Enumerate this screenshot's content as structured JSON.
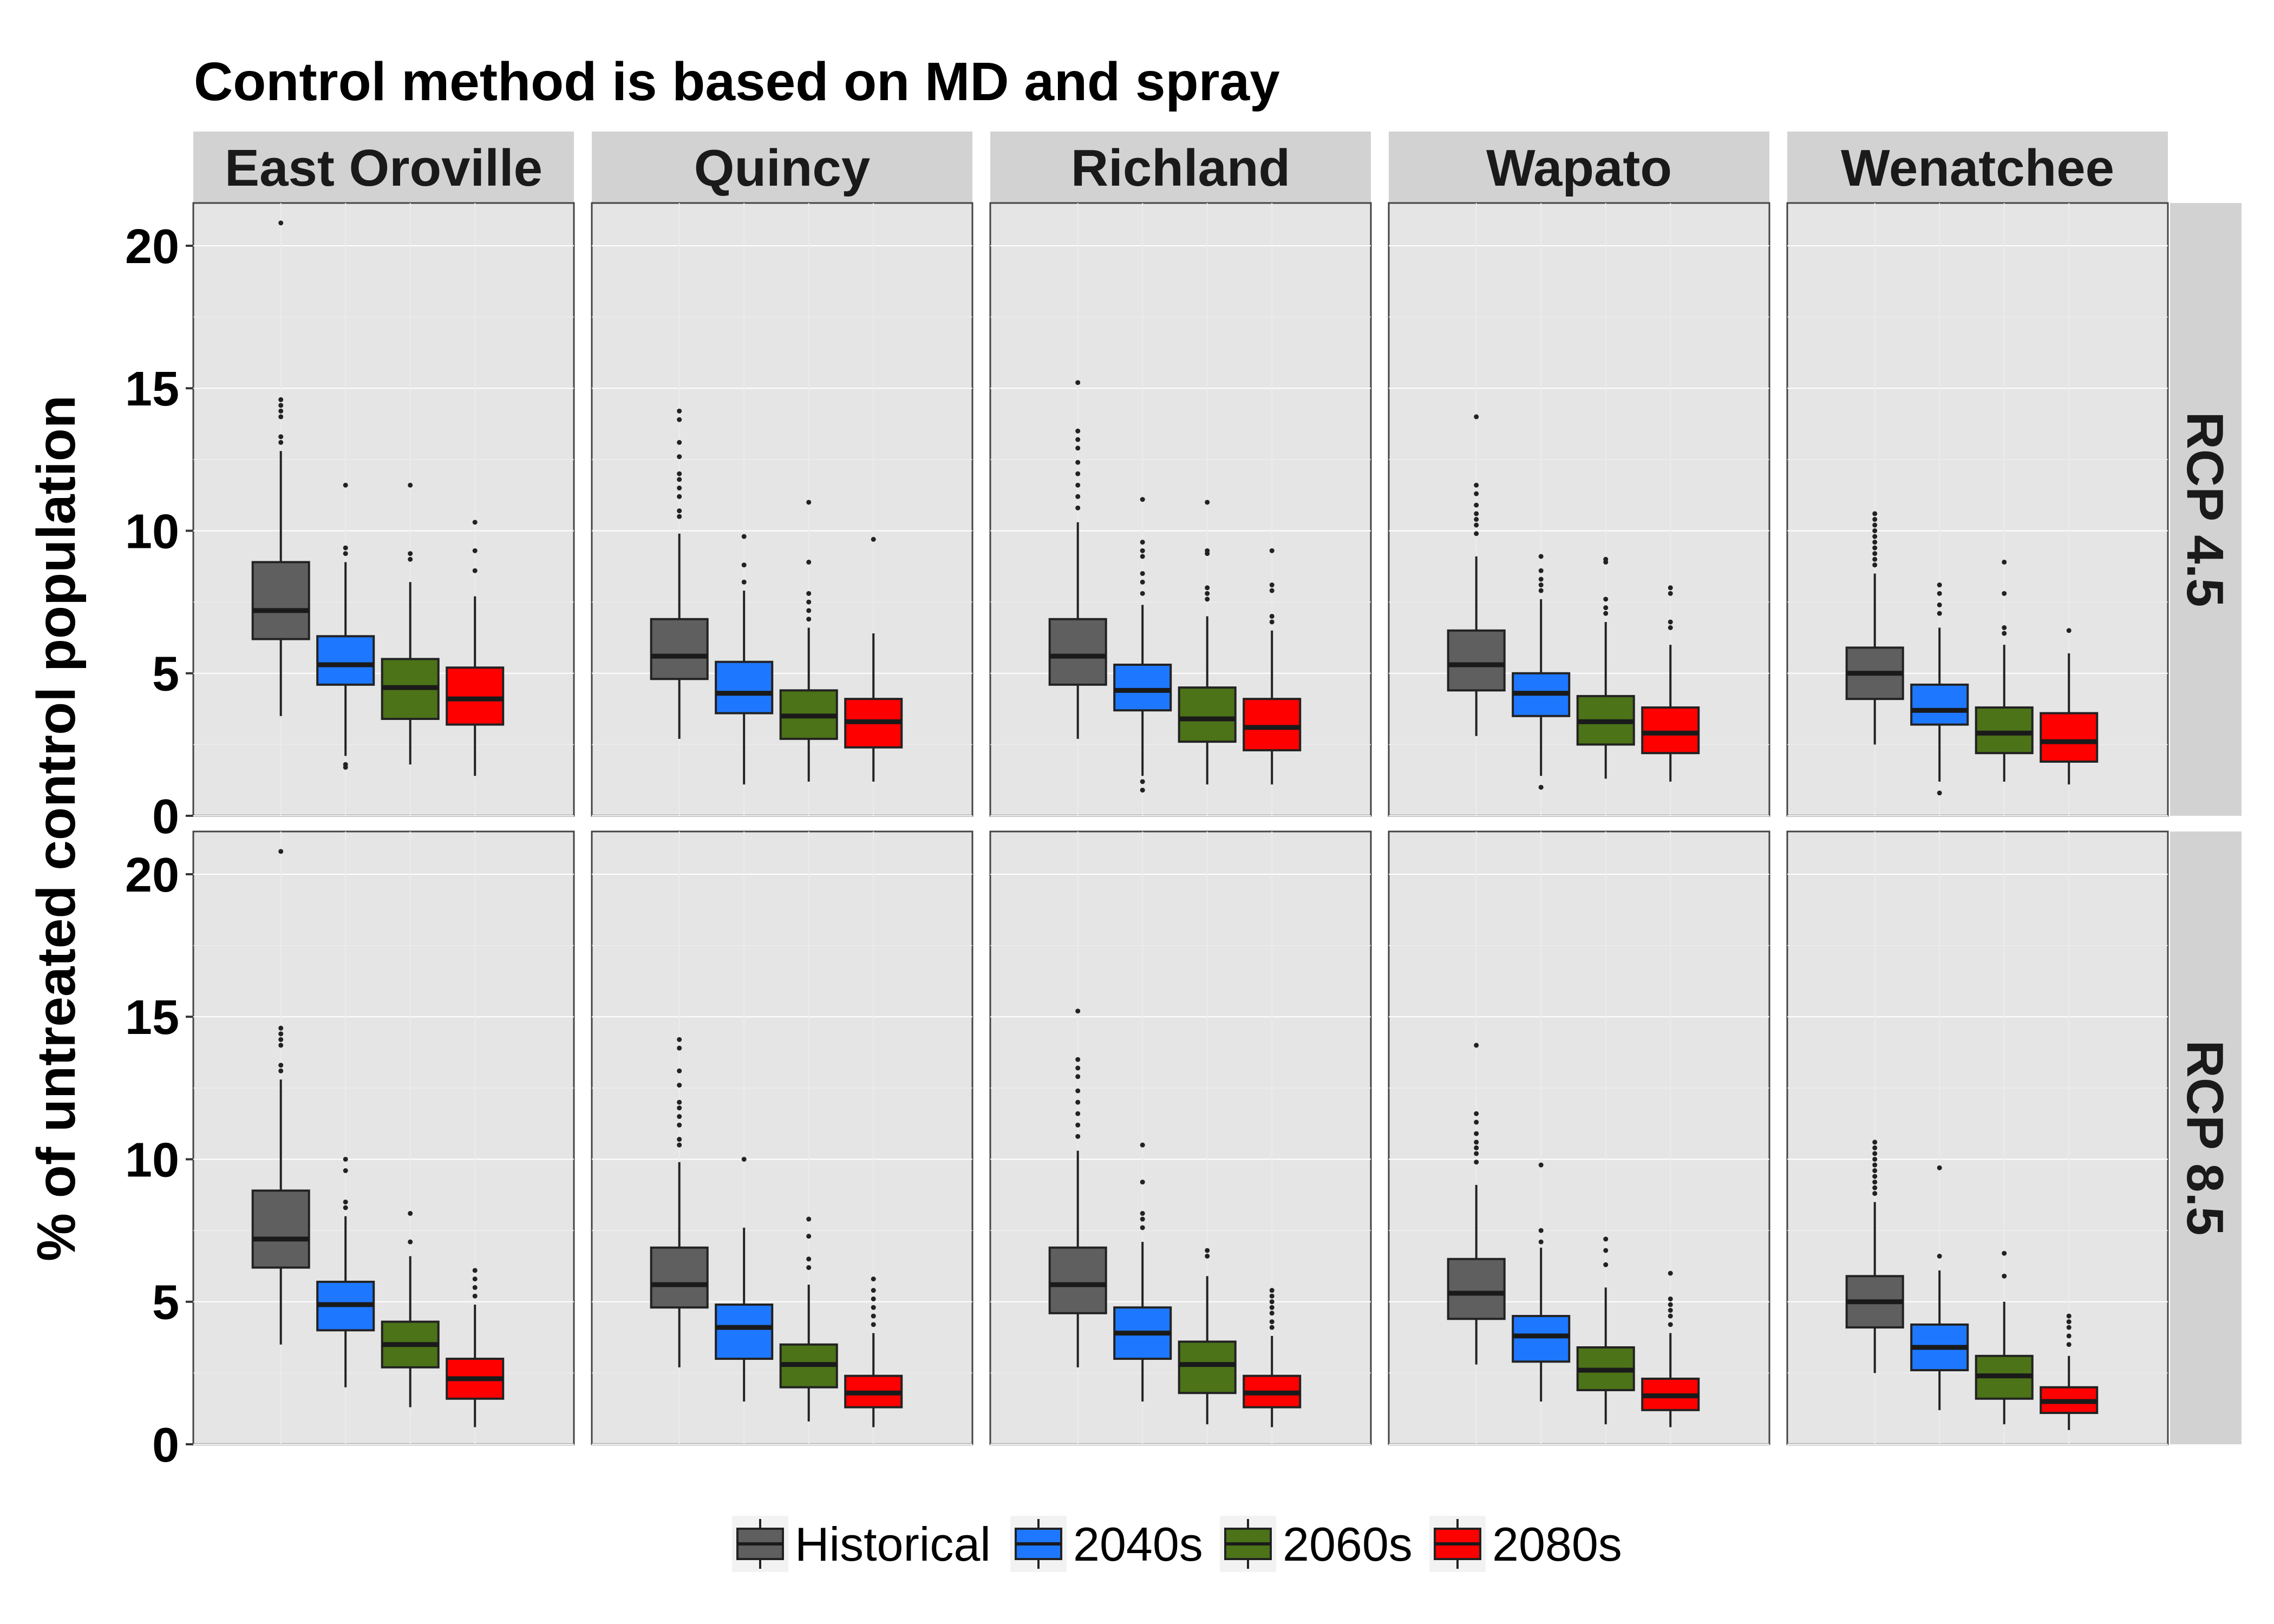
{
  "chart_data": {
    "type": "boxplot",
    "title": "Control method is based on MD and spray",
    "ylabel": "% of untreated control population",
    "xlabel": "",
    "ylim": [
      0,
      21.5
    ],
    "yticks": [
      0,
      5,
      10,
      15,
      20
    ],
    "grid": true,
    "legend_position": "bottom",
    "facet_columns": [
      "East Oroville",
      "Quincy",
      "Richland",
      "Wapato",
      "Wenatchee"
    ],
    "facet_rows": [
      "RCP 4.5",
      "RCP 8.5"
    ],
    "series": [
      {
        "name": "Historical",
        "color": "#5f5f5f"
      },
      {
        "name": "2040s",
        "color": "#1e78ff"
      },
      {
        "name": "2060s",
        "color": "#4c7318"
      },
      {
        "name": "2080s",
        "color": "#ff0000"
      }
    ],
    "panels": [
      {
        "row": "RCP 4.5",
        "column": "East Oroville",
        "boxes": [
          {
            "min": 3.5,
            "q1": 6.2,
            "median": 7.2,
            "q3": 8.9,
            "max": 12.8,
            "outliers": [
              13.1,
              13.3,
              14.0,
              14.2,
              14.4,
              14.6,
              20.8
            ]
          },
          {
            "min": 2.1,
            "q1": 4.6,
            "median": 5.3,
            "q3": 6.3,
            "max": 8.9,
            "outliers": [
              1.7,
              1.8,
              9.2,
              9.4,
              11.6
            ]
          },
          {
            "min": 1.8,
            "q1": 3.4,
            "median": 4.5,
            "q3": 5.5,
            "max": 8.2,
            "outliers": [
              9.0,
              9.2,
              11.6
            ]
          },
          {
            "min": 1.4,
            "q1": 3.2,
            "median": 4.1,
            "q3": 5.2,
            "max": 7.7,
            "outliers": [
              8.6,
              9.3,
              10.3
            ]
          }
        ]
      },
      {
        "row": "RCP 4.5",
        "column": "Quincy",
        "boxes": [
          {
            "min": 2.7,
            "q1": 4.8,
            "median": 5.6,
            "q3": 6.9,
            "max": 9.9,
            "outliers": [
              10.5,
              10.7,
              11.2,
              11.5,
              11.8,
              12.0,
              12.6,
              13.1,
              13.9,
              14.2
            ]
          },
          {
            "min": 1.1,
            "q1": 3.6,
            "median": 4.3,
            "q3": 5.4,
            "max": 7.9,
            "outliers": [
              8.2,
              8.8,
              9.8
            ]
          },
          {
            "min": 1.2,
            "q1": 2.7,
            "median": 3.5,
            "q3": 4.4,
            "max": 6.6,
            "outliers": [
              6.9,
              7.2,
              7.5,
              7.8,
              8.9,
              11.0
            ]
          },
          {
            "min": 1.2,
            "q1": 2.4,
            "median": 3.3,
            "q3": 4.1,
            "max": 6.4,
            "outliers": [
              9.7
            ]
          }
        ]
      },
      {
        "row": "RCP 4.5",
        "column": "Richland",
        "boxes": [
          {
            "min": 2.7,
            "q1": 4.6,
            "median": 5.6,
            "q3": 6.9,
            "max": 10.3,
            "outliers": [
              10.8,
              11.2,
              11.6,
              12.0,
              12.4,
              12.9,
              13.2,
              13.5,
              15.2
            ]
          },
          {
            "min": 1.4,
            "q1": 3.7,
            "median": 4.4,
            "q3": 5.3,
            "max": 7.4,
            "outliers": [
              0.9,
              1.2,
              7.8,
              8.2,
              8.5,
              9.1,
              9.3,
              9.6,
              11.1
            ]
          },
          {
            "min": 1.1,
            "q1": 2.6,
            "median": 3.4,
            "q3": 4.5,
            "max": 7.0,
            "outliers": [
              7.6,
              7.8,
              8.0,
              9.2,
              9.3,
              11.0
            ]
          },
          {
            "min": 1.1,
            "q1": 2.3,
            "median": 3.1,
            "q3": 4.1,
            "max": 6.5,
            "outliers": [
              6.8,
              7.0,
              7.9,
              8.1,
              9.3
            ]
          }
        ]
      },
      {
        "row": "RCP 4.5",
        "column": "Wapato",
        "boxes": [
          {
            "min": 2.8,
            "q1": 4.4,
            "median": 5.3,
            "q3": 6.5,
            "max": 9.1,
            "outliers": [
              9.9,
              10.2,
              10.4,
              10.6,
              10.9,
              11.3,
              11.6,
              14.0
            ]
          },
          {
            "min": 1.4,
            "q1": 3.5,
            "median": 4.3,
            "q3": 5.0,
            "max": 7.6,
            "outliers": [
              1.0,
              7.9,
              8.1,
              8.3,
              8.6,
              9.1
            ]
          },
          {
            "min": 1.3,
            "q1": 2.5,
            "median": 3.3,
            "q3": 4.2,
            "max": 6.8,
            "outliers": [
              7.1,
              7.3,
              7.6,
              8.9,
              9.0
            ]
          },
          {
            "min": 1.2,
            "q1": 2.2,
            "median": 2.9,
            "q3": 3.8,
            "max": 6.0,
            "outliers": [
              6.6,
              6.8,
              7.8,
              8.0
            ]
          }
        ]
      },
      {
        "row": "RCP 4.5",
        "column": "Wenatchee",
        "boxes": [
          {
            "min": 2.5,
            "q1": 4.1,
            "median": 5.0,
            "q3": 5.9,
            "max": 8.5,
            "outliers": [
              8.8,
              9.0,
              9.2,
              9.4,
              9.6,
              9.8,
              10.0,
              10.2,
              10.4,
              10.6
            ]
          },
          {
            "min": 1.2,
            "q1": 3.2,
            "median": 3.7,
            "q3": 4.6,
            "max": 6.6,
            "outliers": [
              0.8,
              7.1,
              7.4,
              7.8,
              8.1
            ]
          },
          {
            "min": 1.2,
            "q1": 2.2,
            "median": 2.9,
            "q3": 3.8,
            "max": 6.0,
            "outliers": [
              6.4,
              6.6,
              7.8,
              8.9
            ]
          },
          {
            "min": 1.1,
            "q1": 1.9,
            "median": 2.6,
            "q3": 3.6,
            "max": 5.7,
            "outliers": [
              6.5
            ]
          }
        ]
      },
      {
        "row": "RCP 8.5",
        "column": "East Oroville",
        "boxes": [
          {
            "min": 3.5,
            "q1": 6.2,
            "median": 7.2,
            "q3": 8.9,
            "max": 12.8,
            "outliers": [
              13.1,
              13.3,
              14.0,
              14.2,
              14.4,
              14.6,
              20.8
            ]
          },
          {
            "min": 2.0,
            "q1": 4.0,
            "median": 4.9,
            "q3": 5.7,
            "max": 8.0,
            "outliers": [
              8.3,
              8.5,
              9.6,
              10.0
            ]
          },
          {
            "min": 1.3,
            "q1": 2.7,
            "median": 3.5,
            "q3": 4.3,
            "max": 6.6,
            "outliers": [
              7.1,
              8.1
            ]
          },
          {
            "min": 0.6,
            "q1": 1.6,
            "median": 2.3,
            "q3": 3.0,
            "max": 4.9,
            "outliers": [
              5.2,
              5.5,
              5.8,
              6.1
            ]
          }
        ]
      },
      {
        "row": "RCP 8.5",
        "column": "Quincy",
        "boxes": [
          {
            "min": 2.7,
            "q1": 4.8,
            "median": 5.6,
            "q3": 6.9,
            "max": 9.9,
            "outliers": [
              10.5,
              10.7,
              11.2,
              11.5,
              11.8,
              12.0,
              12.6,
              13.1,
              13.9,
              14.2
            ]
          },
          {
            "min": 1.5,
            "q1": 3.0,
            "median": 4.1,
            "q3": 4.9,
            "max": 7.6,
            "outliers": [
              10.0
            ]
          },
          {
            "min": 0.8,
            "q1": 2.0,
            "median": 2.8,
            "q3": 3.5,
            "max": 5.6,
            "outliers": [
              6.2,
              6.5,
              7.3,
              7.9
            ]
          },
          {
            "min": 0.6,
            "q1": 1.3,
            "median": 1.8,
            "q3": 2.4,
            "max": 3.9,
            "outliers": [
              4.2,
              4.5,
              4.8,
              5.1,
              5.4,
              5.8
            ]
          }
        ]
      },
      {
        "row": "RCP 8.5",
        "column": "Richland",
        "boxes": [
          {
            "min": 2.7,
            "q1": 4.6,
            "median": 5.6,
            "q3": 6.9,
            "max": 10.3,
            "outliers": [
              10.8,
              11.2,
              11.6,
              12.0,
              12.4,
              12.9,
              13.2,
              13.5,
              15.2
            ]
          },
          {
            "min": 1.5,
            "q1": 3.0,
            "median": 3.9,
            "q3": 4.8,
            "max": 7.1,
            "outliers": [
              7.6,
              7.9,
              8.1,
              9.2,
              10.5
            ]
          },
          {
            "min": 0.7,
            "q1": 1.8,
            "median": 2.8,
            "q3": 3.6,
            "max": 5.9,
            "outliers": [
              6.6,
              6.8
            ]
          },
          {
            "min": 0.6,
            "q1": 1.3,
            "median": 1.8,
            "q3": 2.4,
            "max": 3.8,
            "outliers": [
              4.1,
              4.3,
              4.6,
              4.8,
              5.0,
              5.2,
              5.4
            ]
          }
        ]
      },
      {
        "row": "RCP 8.5",
        "column": "Wapato",
        "boxes": [
          {
            "min": 2.8,
            "q1": 4.4,
            "median": 5.3,
            "q3": 6.5,
            "max": 9.1,
            "outliers": [
              9.9,
              10.2,
              10.4,
              10.6,
              10.9,
              11.3,
              11.6,
              14.0
            ]
          },
          {
            "min": 1.5,
            "q1": 2.9,
            "median": 3.8,
            "q3": 4.5,
            "max": 6.9,
            "outliers": [
              7.1,
              7.5,
              9.8
            ]
          },
          {
            "min": 0.7,
            "q1": 1.9,
            "median": 2.6,
            "q3": 3.4,
            "max": 5.5,
            "outliers": [
              6.3,
              6.8,
              7.2
            ]
          },
          {
            "min": 0.6,
            "q1": 1.2,
            "median": 1.7,
            "q3": 2.3,
            "max": 3.9,
            "outliers": [
              4.2,
              4.5,
              4.7,
              4.9,
              5.1,
              6.0
            ]
          }
        ]
      },
      {
        "row": "RCP 8.5",
        "column": "Wenatchee",
        "boxes": [
          {
            "min": 2.5,
            "q1": 4.1,
            "median": 5.0,
            "q3": 5.9,
            "max": 8.5,
            "outliers": [
              8.8,
              9.0,
              9.2,
              9.4,
              9.6,
              9.8,
              10.0,
              10.2,
              10.4,
              10.6
            ]
          },
          {
            "min": 1.2,
            "q1": 2.6,
            "median": 3.4,
            "q3": 4.2,
            "max": 6.1,
            "outliers": [
              6.6,
              9.7
            ]
          },
          {
            "min": 0.7,
            "q1": 1.6,
            "median": 2.4,
            "q3": 3.1,
            "max": 5.0,
            "outliers": [
              5.9,
              6.7
            ]
          },
          {
            "min": 0.5,
            "q1": 1.1,
            "median": 1.5,
            "q3": 2.0,
            "max": 3.1,
            "outliers": [
              3.5,
              3.8,
              4.1,
              4.3,
              4.5
            ]
          }
        ]
      }
    ]
  }
}
